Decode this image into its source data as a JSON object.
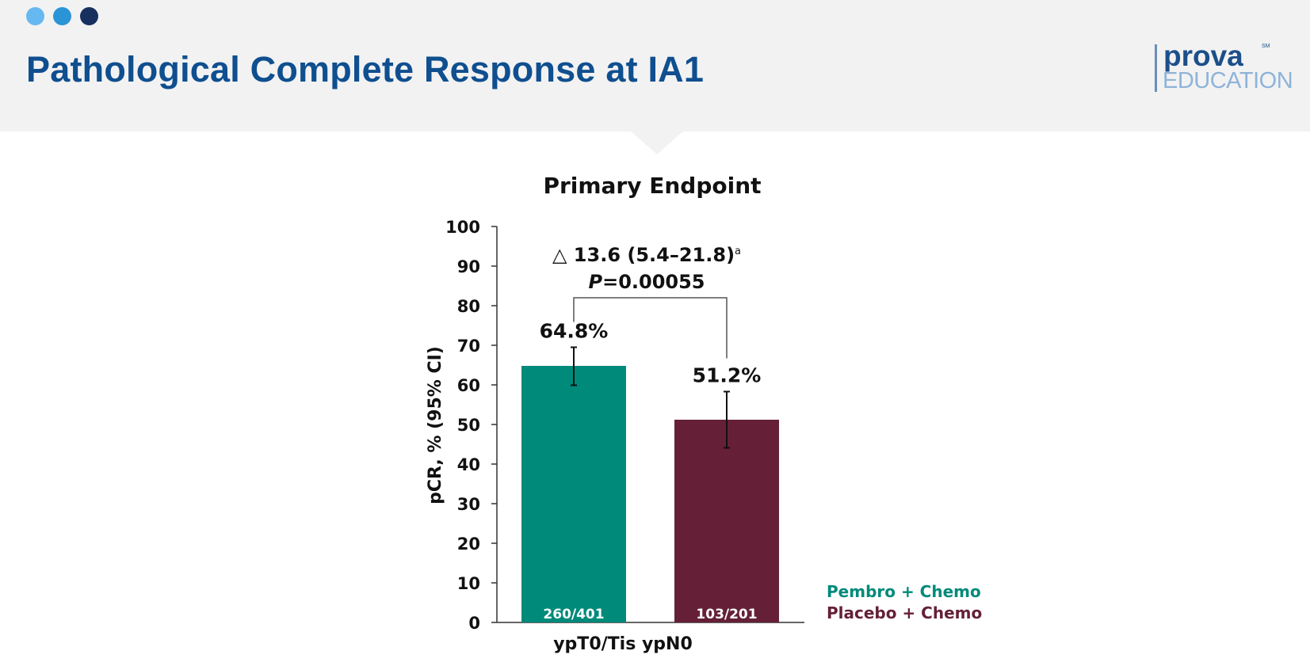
{
  "header": {
    "title": "Pathological Complete Response at IA1",
    "dot_colors": [
      "#66b8f0",
      "#2b94d6",
      "#17305f"
    ],
    "logo": {
      "word": "prova",
      "sm": "SM",
      "sub": "EDUCATION"
    }
  },
  "chart_data": {
    "type": "bar",
    "title": "Primary Endpoint",
    "ylabel": "pCR, % (95% CI)",
    "xlabel": "ypT0/Tis ypN0",
    "ylim": [
      0,
      100
    ],
    "yticks": [
      0,
      10,
      20,
      30,
      40,
      50,
      60,
      70,
      80,
      90,
      100
    ],
    "series": [
      {
        "name": "Pembro + Chemo",
        "value": 64.8,
        "ci": [
          59.9,
          69.5
        ],
        "label": "64.8%",
        "n_label": "260/401",
        "color": "#008a7a"
      },
      {
        "name": "Placebo + Chemo",
        "value": 51.2,
        "ci": [
          44.1,
          58.3
        ],
        "label": "51.2%",
        "n_label": "103/201",
        "color": "#652037"
      }
    ],
    "annotation": {
      "delta_symbol": "△",
      "delta": "13.6 (5.4–21.8)",
      "delta_sup": "a",
      "p_label": "P",
      "p_value": "=0.00055"
    },
    "legend_position": "bottom-right"
  }
}
